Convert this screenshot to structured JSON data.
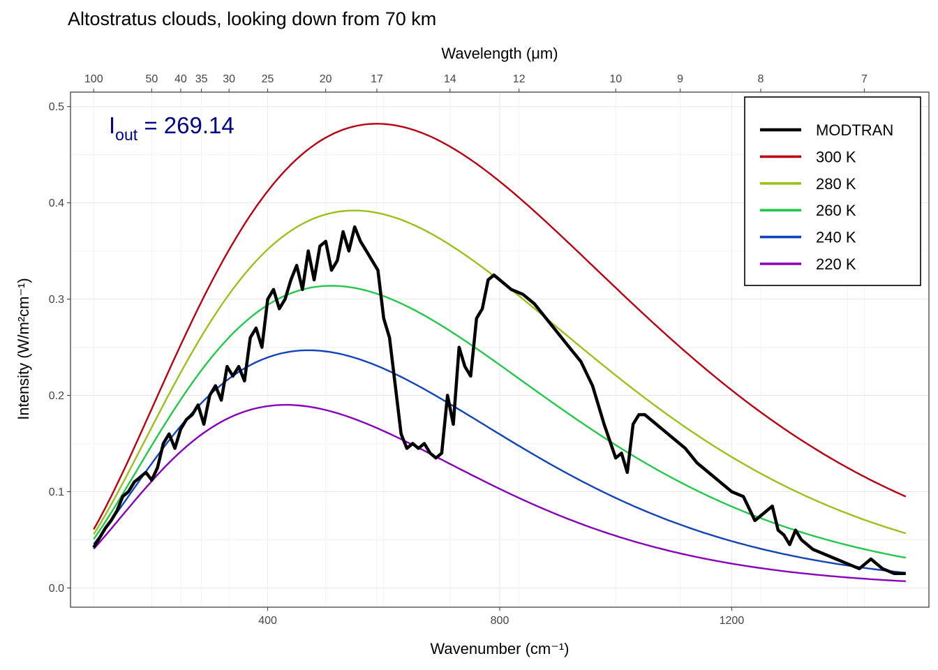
{
  "chart_data": {
    "type": "line",
    "title": "Altostratus clouds, looking down from 70 km",
    "xlabel": "Wavenumber (cm⁻¹)",
    "ylabel": "Intensity (W/m²cm⁻¹)",
    "x2label": "Wavelength (μm)",
    "xlim": [
      60,
      1540
    ],
    "ylim": [
      -0.02,
      0.515
    ],
    "x_ticks": [
      400,
      800,
      1200
    ],
    "y_ticks": [
      0.0,
      0.1,
      0.2,
      0.3,
      0.4,
      0.5
    ],
    "y_tick_labels": [
      "0.0",
      "0.1",
      "0.2",
      "0.3",
      "0.4",
      "0.5"
    ],
    "x2_ticks_um": [
      100,
      50,
      40,
      35,
      30,
      25,
      20,
      17,
      14,
      12,
      10,
      9,
      8,
      7
    ],
    "grid": true,
    "legend_position": "top-right",
    "annotation": {
      "label_main": "I",
      "label_sub": "out",
      "label_rest": " = 269.14",
      "value": 269.14,
      "color": "#00008B"
    },
    "blackbody_series": [
      {
        "name": "300 K",
        "temperature": 300,
        "color": "#BB0011"
      },
      {
        "name": "280 K",
        "temperature": 280,
        "color": "#99C11A"
      },
      {
        "name": "260 K",
        "temperature": 260,
        "color": "#22C84A"
      },
      {
        "name": "240 K",
        "temperature": 240,
        "color": "#1144BB"
      },
      {
        "name": "220 K",
        "temperature": 220,
        "color": "#8800BB"
      }
    ],
    "modtran": {
      "name": "MODTRAN",
      "color": "#000000",
      "x": [
        100,
        110,
        120,
        130,
        140,
        150,
        160,
        170,
        180,
        190,
        200,
        210,
        220,
        230,
        240,
        250,
        260,
        270,
        280,
        290,
        300,
        310,
        320,
        330,
        340,
        350,
        360,
        370,
        380,
        390,
        400,
        410,
        420,
        430,
        440,
        450,
        460,
        470,
        480,
        490,
        500,
        510,
        520,
        530,
        540,
        550,
        560,
        570,
        580,
        590,
        600,
        610,
        620,
        630,
        640,
        650,
        660,
        670,
        680,
        690,
        700,
        710,
        720,
        730,
        740,
        750,
        760,
        770,
        780,
        790,
        800,
        820,
        840,
        860,
        880,
        900,
        920,
        940,
        960,
        980,
        1000,
        1010,
        1020,
        1030,
        1040,
        1050,
        1060,
        1070,
        1080,
        1090,
        1100,
        1120,
        1140,
        1160,
        1180,
        1200,
        1220,
        1240,
        1260,
        1270,
        1280,
        1290,
        1300,
        1310,
        1320,
        1340,
        1360,
        1380,
        1400,
        1420,
        1440,
        1460,
        1480,
        1500
      ],
      "y": [
        0.042,
        0.052,
        0.062,
        0.07,
        0.08,
        0.095,
        0.1,
        0.11,
        0.115,
        0.12,
        0.112,
        0.125,
        0.15,
        0.16,
        0.145,
        0.165,
        0.175,
        0.18,
        0.19,
        0.17,
        0.2,
        0.21,
        0.195,
        0.23,
        0.22,
        0.23,
        0.215,
        0.26,
        0.27,
        0.25,
        0.3,
        0.31,
        0.29,
        0.3,
        0.32,
        0.335,
        0.31,
        0.35,
        0.32,
        0.355,
        0.36,
        0.33,
        0.34,
        0.37,
        0.35,
        0.375,
        0.36,
        0.35,
        0.34,
        0.33,
        0.28,
        0.26,
        0.21,
        0.16,
        0.145,
        0.15,
        0.145,
        0.15,
        0.14,
        0.135,
        0.14,
        0.2,
        0.17,
        0.25,
        0.23,
        0.22,
        0.28,
        0.29,
        0.32,
        0.325,
        0.32,
        0.31,
        0.305,
        0.295,
        0.28,
        0.265,
        0.25,
        0.235,
        0.21,
        0.17,
        0.135,
        0.14,
        0.12,
        0.17,
        0.18,
        0.18,
        0.175,
        0.17,
        0.165,
        0.16,
        0.155,
        0.145,
        0.13,
        0.12,
        0.11,
        0.1,
        0.095,
        0.07,
        0.08,
        0.085,
        0.06,
        0.055,
        0.045,
        0.06,
        0.05,
        0.04,
        0.035,
        0.03,
        0.025,
        0.02,
        0.03,
        0.02,
        0.015,
        0.015
      ]
    }
  }
}
